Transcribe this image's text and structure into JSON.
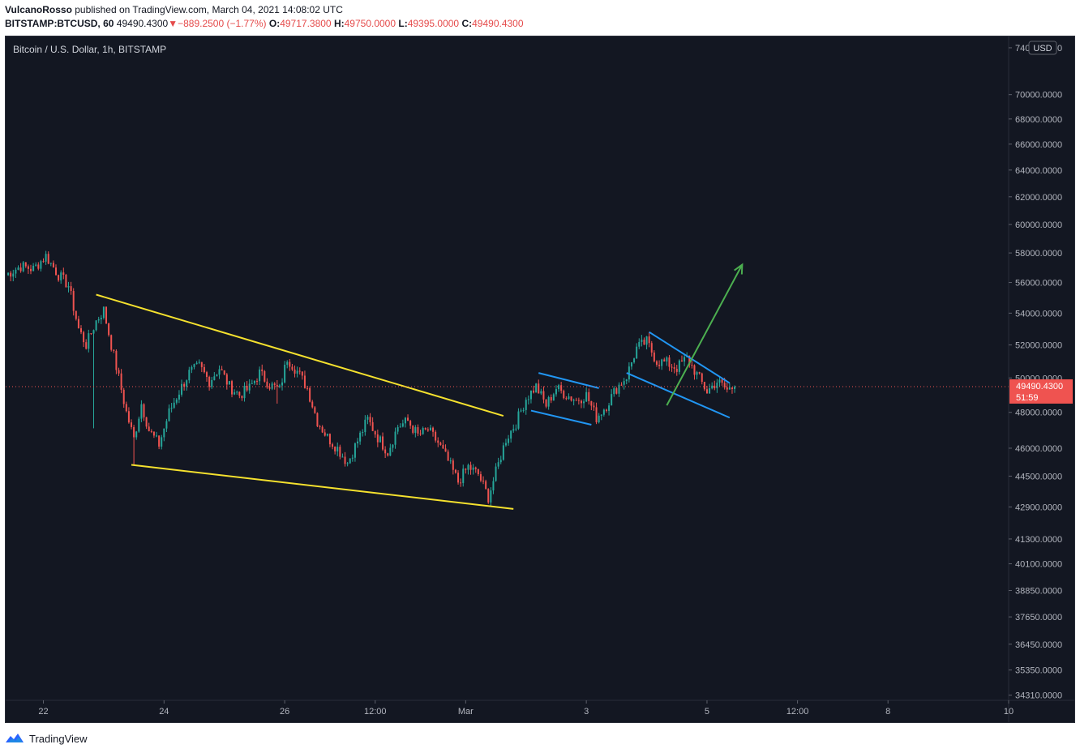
{
  "header": {
    "author": "VulcanoRosso",
    "published": " published on TradingView.com, March 04, 2021 14:08:02 UTC",
    "symbol": "BITSTAMP:BTCUSD, 60",
    "last": "49490.4300",
    "change_arrow": "▼",
    "change": "−889.2500 (−1.77%)",
    "o_label": "O:",
    "o_value": "49717.3800",
    "h_label": "H:",
    "h_value": "49750.0000",
    "l_label": "L:",
    "l_value": "49395.0000",
    "c_label": "C:",
    "c_value": "49490.4300"
  },
  "footer": {
    "brand": "TradingView",
    "logo_icon": "tradingview-logo-icon"
  },
  "colors": {
    "background": "#131722",
    "up": "#26a69a",
    "down": "#ef5350",
    "wedge": "#f5e12e",
    "channel": "#2196f3",
    "arrow": "#4caf50",
    "axis_text": "#b2b5be",
    "price_line": "#ef5350"
  },
  "chart_data": {
    "type": "candlestick",
    "title": "Bitcoin / U.S. Dollar, 1h, BITSTAMP",
    "currency": "USD",
    "y_scale": "log",
    "ylim": [
      34100,
      75000
    ],
    "y_ticks": [
      {
        "v": 74000,
        "label": "74000.0000"
      },
      {
        "v": 70000,
        "label": "70000.0000"
      },
      {
        "v": 68000,
        "label": "68000.0000"
      },
      {
        "v": 66000,
        "label": "66000.0000"
      },
      {
        "v": 64000,
        "label": "64000.0000"
      },
      {
        "v": 62000,
        "label": "62000.0000"
      },
      {
        "v": 60000,
        "label": "60000.0000"
      },
      {
        "v": 58000,
        "label": "58000.0000"
      },
      {
        "v": 56000,
        "label": "56000.0000"
      },
      {
        "v": 54000,
        "label": "54000.0000"
      },
      {
        "v": 52000,
        "label": "52000.0000"
      },
      {
        "v": 50000,
        "label": "50000.0000"
      },
      {
        "v": 48000,
        "label": "48000.0000"
      },
      {
        "v": 46000,
        "label": "46000.0000"
      },
      {
        "v": 44500,
        "label": "44500.0000"
      },
      {
        "v": 42900,
        "label": "42900.0000"
      },
      {
        "v": 41300,
        "label": "41300.0000"
      },
      {
        "v": 40100,
        "label": "40100.0000"
      },
      {
        "v": 38850,
        "label": "38850.0000"
      },
      {
        "v": 37650,
        "label": "37650.0000"
      },
      {
        "v": 36450,
        "label": "36450.0000"
      },
      {
        "v": 35350,
        "label": "35350.0000"
      },
      {
        "v": 34310,
        "label": "34310.0000"
      }
    ],
    "x_ticks": [
      {
        "t": "2021-02-22 00:00",
        "label": "22"
      },
      {
        "t": "2021-02-24 00:00",
        "label": "24"
      },
      {
        "t": "2021-02-26 00:00",
        "label": "26"
      },
      {
        "t": "2021-02-27 12:00",
        "label": "12:00"
      },
      {
        "t": "2021-03-01 00:00",
        "label": "Mar"
      },
      {
        "t": "2021-03-03 00:00",
        "label": "3"
      },
      {
        "t": "2021-03-05 00:00",
        "label": "5"
      },
      {
        "t": "2021-03-06 12:00",
        "label": "12:00"
      },
      {
        "t": "2021-03-08 00:00",
        "label": "8"
      },
      {
        "t": "2021-03-10 00:00",
        "label": "10"
      }
    ],
    "xlim": [
      "2021-02-21 09:00",
      "2021-03-10 00:00"
    ],
    "last_price": {
      "value": 49490.43,
      "label": "49490.4300",
      "countdown": "51:59"
    },
    "price_path": [
      {
        "t": "2021-02-21 09:00",
        "p": 56500
      },
      {
        "t": "2021-02-21 15:00",
        "p": 57100
      },
      {
        "t": "2021-02-21 20:00",
        "p": 56900
      },
      {
        "t": "2021-02-22 01:00",
        "p": 57800
      },
      {
        "t": "2021-02-22 06:00",
        "p": 56500
      },
      {
        "t": "2021-02-22 10:00",
        "p": 55800
      },
      {
        "t": "2021-02-22 14:00",
        "p": 53000
      },
      {
        "t": "2021-02-22 17:00",
        "p": 52000
      },
      {
        "t": "2021-02-22 21:00",
        "p": 53500
      },
      {
        "t": "2021-02-23 00:00",
        "p": 54200
      },
      {
        "t": "2021-02-23 03:00",
        "p": 52000
      },
      {
        "t": "2021-02-23 06:00",
        "p": 50000
      },
      {
        "t": "2021-02-23 09:00",
        "p": 48000
      },
      {
        "t": "2021-02-23 12:00",
        "p": 46500
      },
      {
        "t": "2021-02-23 15:00",
        "p": 48500
      },
      {
        "t": "2021-02-23 18:00",
        "p": 47000
      },
      {
        "t": "2021-02-23 22:00",
        "p": 46200
      },
      {
        "t": "2021-02-24 02:00",
        "p": 48000
      },
      {
        "t": "2021-02-24 06:00",
        "p": 49200
      },
      {
        "t": "2021-02-24 10:00",
        "p": 50300
      },
      {
        "t": "2021-02-24 14:00",
        "p": 50700
      },
      {
        "t": "2021-02-24 18:00",
        "p": 49800
      },
      {
        "t": "2021-02-24 22:00",
        "p": 50600
      },
      {
        "t": "2021-02-25 02:00",
        "p": 49500
      },
      {
        "t": "2021-02-25 06:00",
        "p": 49000
      },
      {
        "t": "2021-02-25 10:00",
        "p": 49400
      },
      {
        "t": "2021-02-25 14:00",
        "p": 50300
      },
      {
        "t": "2021-02-25 18:00",
        "p": 49600
      },
      {
        "t": "2021-02-25 22:00",
        "p": 49300
      },
      {
        "t": "2021-02-26 01:00",
        "p": 51200
      },
      {
        "t": "2021-02-26 05:00",
        "p": 50400
      },
      {
        "t": "2021-02-26 09:00",
        "p": 49400
      },
      {
        "t": "2021-02-26 13:00",
        "p": 47500
      },
      {
        "t": "2021-02-26 17:00",
        "p": 46600
      },
      {
        "t": "2021-02-26 21:00",
        "p": 46000
      },
      {
        "t": "2021-02-27 01:00",
        "p": 45200
      },
      {
        "t": "2021-02-27 05:00",
        "p": 46400
      },
      {
        "t": "2021-02-27 09:00",
        "p": 47600
      },
      {
        "t": "2021-02-27 13:00",
        "p": 46600
      },
      {
        "t": "2021-02-27 17:00",
        "p": 45800
      },
      {
        "t": "2021-02-27 21:00",
        "p": 47200
      },
      {
        "t": "2021-02-28 01:00",
        "p": 47500
      },
      {
        "t": "2021-02-28 05:00",
        "p": 46700
      },
      {
        "t": "2021-02-28 09:00",
        "p": 47000
      },
      {
        "t": "2021-02-28 13:00",
        "p": 46300
      },
      {
        "t": "2021-02-28 17:00",
        "p": 45300
      },
      {
        "t": "2021-02-28 21:00",
        "p": 44200
      },
      {
        "t": "2021-03-01 01:00",
        "p": 45000
      },
      {
        "t": "2021-03-01 05:00",
        "p": 44600
      },
      {
        "t": "2021-03-01 09:00",
        "p": 43400
      },
      {
        "t": "2021-03-01 12:00",
        "p": 44700
      },
      {
        "t": "2021-03-01 16:00",
        "p": 46500
      },
      {
        "t": "2021-03-01 20:00",
        "p": 47400
      },
      {
        "t": "2021-03-02 00:00",
        "p": 48800
      },
      {
        "t": "2021-03-02 04:00",
        "p": 49500
      },
      {
        "t": "2021-03-02 08:00",
        "p": 48400
      },
      {
        "t": "2021-03-02 12:00",
        "p": 49400
      },
      {
        "t": "2021-03-02 16:00",
        "p": 49000
      },
      {
        "t": "2021-03-02 20:00",
        "p": 48700
      },
      {
        "t": "2021-03-03 00:00",
        "p": 49000
      },
      {
        "t": "2021-03-03 04:00",
        "p": 47700
      },
      {
        "t": "2021-03-03 08:00",
        "p": 48400
      },
      {
        "t": "2021-03-03 12:00",
        "p": 49400
      },
      {
        "t": "2021-03-03 16:00",
        "p": 50100
      },
      {
        "t": "2021-03-03 20:00",
        "p": 51800
      },
      {
        "t": "2021-03-04 00:00",
        "p": 52200
      },
      {
        "t": "2021-03-04 04:00",
        "p": 51000
      },
      {
        "t": "2021-03-04 08:00",
        "p": 50900
      },
      {
        "t": "2021-03-04 12:00",
        "p": 50600
      },
      {
        "t": "2021-03-04 16:00",
        "p": 51200
      },
      {
        "t": "2021-03-04 20:00",
        "p": 50200
      },
      {
        "t": "2021-03-05 00:00",
        "p": 49200
      },
      {
        "t": "2021-03-05 04:00",
        "p": 49800
      },
      {
        "t": "2021-03-05 08:00",
        "p": 49300
      },
      {
        "t": "2021-03-05 11:00",
        "p": 49490
      }
    ],
    "spikes": [
      {
        "t": "2021-02-22 20:00",
        "low": 47100
      },
      {
        "t": "2021-02-23 12:00",
        "low": 45100
      },
      {
        "t": "2021-02-25 21:00",
        "low": 48500
      }
    ],
    "drawings": [
      {
        "kind": "trendline",
        "role": "wedge-upper",
        "color": "wedge",
        "from": {
          "t": "2021-02-22 21:00",
          "p": 55200
        },
        "to": {
          "t": "2021-03-01 15:00",
          "p": 47800
        }
      },
      {
        "kind": "trendline",
        "role": "wedge-lower",
        "color": "wedge",
        "from": {
          "t": "2021-02-23 11:00",
          "p": 45100
        },
        "to": {
          "t": "2021-03-01 19:00",
          "p": 42800
        }
      },
      {
        "kind": "trendline",
        "role": "channel-1-upper",
        "color": "channel",
        "from": {
          "t": "2021-03-02 05:00",
          "p": 50300
        },
        "to": {
          "t": "2021-03-03 05:00",
          "p": 49400
        }
      },
      {
        "kind": "trendline",
        "role": "channel-1-lower",
        "color": "channel",
        "from": {
          "t": "2021-03-02 02:00",
          "p": 48100
        },
        "to": {
          "t": "2021-03-03 02:00",
          "p": 47300
        }
      },
      {
        "kind": "trendline",
        "role": "channel-2-upper",
        "color": "channel",
        "from": {
          "t": "2021-03-04 01:00",
          "p": 52800
        },
        "to": {
          "t": "2021-03-05 09:00",
          "p": 49700
        }
      },
      {
        "kind": "trendline",
        "role": "channel-2-lower",
        "color": "channel",
        "from": {
          "t": "2021-03-03 16:00",
          "p": 50300
        },
        "to": {
          "t": "2021-03-05 09:00",
          "p": 47700
        }
      },
      {
        "kind": "arrow",
        "role": "breakout-arrow",
        "color": "arrow",
        "from": {
          "t": "2021-03-04 08:00",
          "p": 48400
        },
        "to": {
          "t": "2021-03-05 14:00",
          "p": 57200
        }
      }
    ]
  }
}
